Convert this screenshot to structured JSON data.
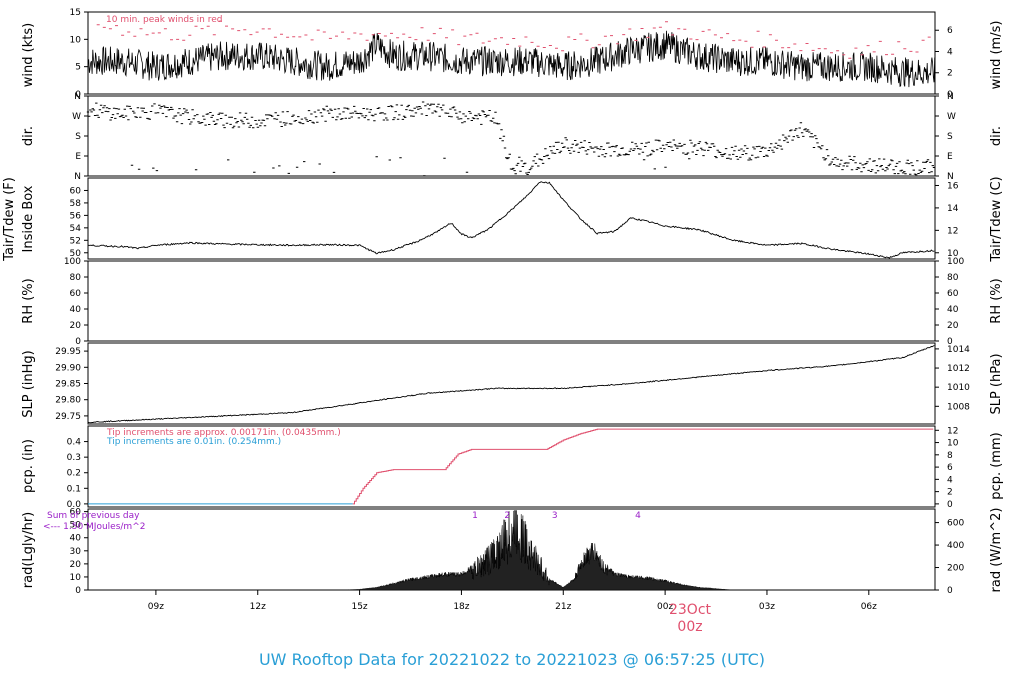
{
  "title": "UW Rooftop Data for 20221022  to  20221023 @ 06:57:25  (UTC)",
  "colors": {
    "title": "#2a9fd6",
    "peak": "#e0506e",
    "tip_red": "#e0506e",
    "tip_blue": "#2a9fd6",
    "purple": "#9a1fc8",
    "date": "#e0506e"
  },
  "x_axis": {
    "ticks": [
      "09z",
      "12z",
      "15z",
      "18z",
      "21z",
      "00z",
      "03z",
      "06z"
    ],
    "date_label": "23Oct",
    "date_sub": "00z"
  },
  "panels": {
    "wind": {
      "ylabel_left": "wind (kts)",
      "ylabel_right": "wind (m/s)",
      "note": "10 min. peak winds in red",
      "left_ticks": [
        "0",
        "5",
        "10",
        "15"
      ],
      "right_ticks": [
        "0",
        "2",
        "4",
        "6"
      ]
    },
    "dir": {
      "ylabel_left": "dir.",
      "ylabel_right": "dir.",
      "ticks": [
        "N",
        "E",
        "S",
        "W",
        "N"
      ]
    },
    "temp": {
      "ylabel_left_1": "Tair/Tdew (F)",
      "ylabel_left_2": "Inside Box",
      "ylabel_right": "Tair/Tdew (C)",
      "left_ticks": [
        "50",
        "52",
        "54",
        "56",
        "58",
        "60"
      ],
      "right_ticks": [
        "10",
        "12",
        "14",
        "16"
      ]
    },
    "rh": {
      "ylabel_left": "RH (%)",
      "ylabel_right": "RH (%)",
      "left_ticks": [
        "0",
        "20",
        "40",
        "60",
        "80",
        "100"
      ],
      "right_ticks": [
        "0",
        "20",
        "40",
        "60",
        "80",
        "100"
      ]
    },
    "slp": {
      "ylabel_left": "SLP (inHg)",
      "ylabel_right": "SLP (hPa)",
      "left_ticks": [
        "29.75",
        "29.80",
        "29.85",
        "29.90",
        "29.95"
      ],
      "right_ticks": [
        "1008",
        "1010",
        "1012",
        "1014"
      ]
    },
    "pcp": {
      "ylabel_left": "pcp. (in)",
      "ylabel_right": "pcp. (mm)",
      "note_red": "Tip increments are approx. 0.00171in. (0.0435mm.)",
      "note_blue": "Tip increments are 0.01in. (0.254mm.)",
      "left_ticks": [
        "0.0",
        "0.1",
        "0.2",
        "0.3",
        "0.4"
      ],
      "right_ticks": [
        "0",
        "2",
        "4",
        "6",
        "8",
        "10",
        "12"
      ]
    },
    "rad": {
      "ylabel_left": "rad(Lgly/hr)",
      "ylabel_right": "rad (W/m^2)",
      "note_1": "Sum of previous day",
      "note_2": "<--- 1.50 MJoules/m^2",
      "left_ticks": [
        "0",
        "10",
        "20",
        "30",
        "40",
        "50",
        "60"
      ],
      "right_ticks": [
        "0",
        "200",
        "400",
        "600"
      ],
      "markers": [
        "1",
        "2",
        "3",
        "4"
      ]
    }
  },
  "chart_data": {
    "type": "line",
    "x_range_hours_utc": [
      "07:00",
      "06:57"
    ],
    "series": [
      {
        "name": "wind (kts)",
        "points": [
          [
            7,
            6
          ],
          [
            8,
            6
          ],
          [
            9,
            5
          ],
          [
            10,
            6
          ],
          [
            11,
            7
          ],
          [
            12,
            7
          ],
          [
            13,
            6
          ],
          [
            14,
            5
          ],
          [
            15,
            6
          ],
          [
            15.5,
            9
          ],
          [
            16,
            7
          ],
          [
            17,
            7
          ],
          [
            18,
            6
          ],
          [
            19,
            6
          ],
          [
            20,
            6
          ],
          [
            21,
            5
          ],
          [
            22,
            6
          ],
          [
            23,
            8
          ],
          [
            24,
            9
          ],
          [
            25,
            7
          ],
          [
            26,
            6
          ],
          [
            27,
            6
          ],
          [
            28,
            5
          ],
          [
            29,
            5
          ],
          [
            30,
            5
          ],
          [
            31,
            4
          ]
        ]
      },
      {
        "name": "10 min. peak winds in red",
        "points": [
          [
            7,
            13
          ],
          [
            8,
            12
          ],
          [
            9,
            11
          ],
          [
            10,
            11
          ],
          [
            11,
            12
          ],
          [
            12,
            12
          ],
          [
            13,
            11
          ],
          [
            14,
            10
          ],
          [
            15,
            11
          ],
          [
            16,
            11
          ],
          [
            17,
            11
          ],
          [
            18,
            10
          ],
          [
            19,
            10
          ],
          [
            20,
            10
          ],
          [
            21,
            9
          ],
          [
            22,
            10
          ],
          [
            23,
            11
          ],
          [
            24,
            12
          ],
          [
            25,
            11
          ],
          [
            26,
            10
          ],
          [
            27,
            10
          ],
          [
            28,
            9
          ],
          [
            29,
            8
          ],
          [
            30,
            8
          ],
          [
            31,
            9
          ]
        ]
      },
      {
        "name": "dir.",
        "points": [
          [
            7,
            300
          ],
          [
            8,
            280
          ],
          [
            9,
            290
          ],
          [
            10,
            265
          ],
          [
            11,
            250
          ],
          [
            12,
            250
          ],
          [
            13,
            260
          ],
          [
            14,
            280
          ],
          [
            15,
            280
          ],
          [
            16,
            285
          ],
          [
            17,
            300
          ],
          [
            18,
            270
          ],
          [
            19,
            260
          ],
          [
            19.5,
            30
          ],
          [
            20,
            45
          ],
          [
            21,
            140
          ],
          [
            22,
            120
          ],
          [
            23,
            120
          ],
          [
            24,
            130
          ],
          [
            25,
            130
          ],
          [
            26,
            100
          ],
          [
            27,
            110
          ],
          [
            28,
            210
          ],
          [
            29,
            60
          ],
          [
            30,
            50
          ],
          [
            31,
            40
          ]
        ]
      },
      {
        "name": "Tair/Tdew (F)",
        "points": [
          [
            7,
            51.2
          ],
          [
            8,
            51
          ],
          [
            8.5,
            50.7
          ],
          [
            9,
            51.2
          ],
          [
            10,
            51.6
          ],
          [
            11,
            51.4
          ],
          [
            12,
            51.3
          ],
          [
            13,
            51.2
          ],
          [
            14,
            51.3
          ],
          [
            15,
            51.2
          ],
          [
            15.5,
            49.9
          ],
          [
            16,
            50.5
          ],
          [
            16.7,
            51.8
          ],
          [
            17.3,
            53.4
          ],
          [
            17.7,
            54.8
          ],
          [
            18,
            53
          ],
          [
            18.3,
            52.4
          ],
          [
            18.8,
            53.8
          ],
          [
            19.5,
            57
          ],
          [
            20,
            59.5
          ],
          [
            20.3,
            61.4
          ],
          [
            20.6,
            61.2
          ],
          [
            21,
            58.5
          ],
          [
            21.5,
            55.5
          ],
          [
            22,
            53.1
          ],
          [
            22.5,
            53.4
          ],
          [
            23,
            55.6
          ],
          [
            23.5,
            55
          ],
          [
            24,
            54.3
          ],
          [
            25,
            53.7
          ],
          [
            26,
            52
          ],
          [
            27,
            51.2
          ],
          [
            28,
            51.5
          ],
          [
            29,
            50.5
          ],
          [
            30,
            49.8
          ],
          [
            30.6,
            49.2
          ],
          [
            31,
            50
          ],
          [
            32,
            50.4
          ]
        ]
      },
      {
        "name": "SLP (inHg)",
        "points": [
          [
            7,
            29.73
          ],
          [
            9,
            29.74
          ],
          [
            11,
            29.75
          ],
          [
            13,
            29.76
          ],
          [
            15,
            29.79
          ],
          [
            17,
            29.82
          ],
          [
            19,
            29.835
          ],
          [
            21,
            29.835
          ],
          [
            23,
            29.85
          ],
          [
            25,
            29.87
          ],
          [
            27,
            29.89
          ],
          [
            29,
            29.905
          ],
          [
            31,
            29.93
          ],
          [
            32,
            29.97
          ]
        ]
      },
      {
        "name": "pcp. (in)",
        "points": [
          [
            7,
            0
          ],
          [
            14.8,
            0
          ],
          [
            15.1,
            0.1
          ],
          [
            15.5,
            0.2
          ],
          [
            16,
            0.22
          ],
          [
            17.5,
            0.22
          ],
          [
            17.9,
            0.32
          ],
          [
            18.3,
            0.35
          ],
          [
            20.5,
            0.35
          ],
          [
            21,
            0.41
          ],
          [
            21.5,
            0.45
          ],
          [
            22,
            0.48
          ],
          [
            32,
            0.48
          ]
        ]
      },
      {
        "name": "rad(Lgly/hr)",
        "points": [
          [
            14.5,
            0
          ],
          [
            15,
            0.5
          ],
          [
            15.5,
            2
          ],
          [
            16,
            5
          ],
          [
            16.5,
            8
          ],
          [
            17,
            10
          ],
          [
            17.5,
            12
          ],
          [
            18,
            12
          ],
          [
            18.5,
            20
          ],
          [
            19,
            33
          ],
          [
            19.4,
            47
          ],
          [
            19.6,
            60
          ],
          [
            19.9,
            40
          ],
          [
            20.3,
            22
          ],
          [
            20.6,
            8
          ],
          [
            21,
            2
          ],
          [
            21.3,
            8
          ],
          [
            21.6,
            28
          ],
          [
            21.9,
            35
          ],
          [
            22.2,
            20
          ],
          [
            22.5,
            12
          ],
          [
            23,
            10
          ],
          [
            23.5,
            9
          ],
          [
            24,
            7
          ],
          [
            24.5,
            4
          ],
          [
            25,
            2
          ],
          [
            25.5,
            1
          ],
          [
            26,
            0
          ]
        ]
      }
    ],
    "ylim": {
      "wind": [
        0,
        15
      ],
      "dir": [
        0,
        360
      ],
      "temp": [
        49,
        62
      ],
      "rh": [
        0,
        100
      ],
      "slp": [
        29.725,
        29.975
      ],
      "pcp": [
        -0.02,
        0.5
      ],
      "rad": [
        0,
        62
      ]
    }
  }
}
